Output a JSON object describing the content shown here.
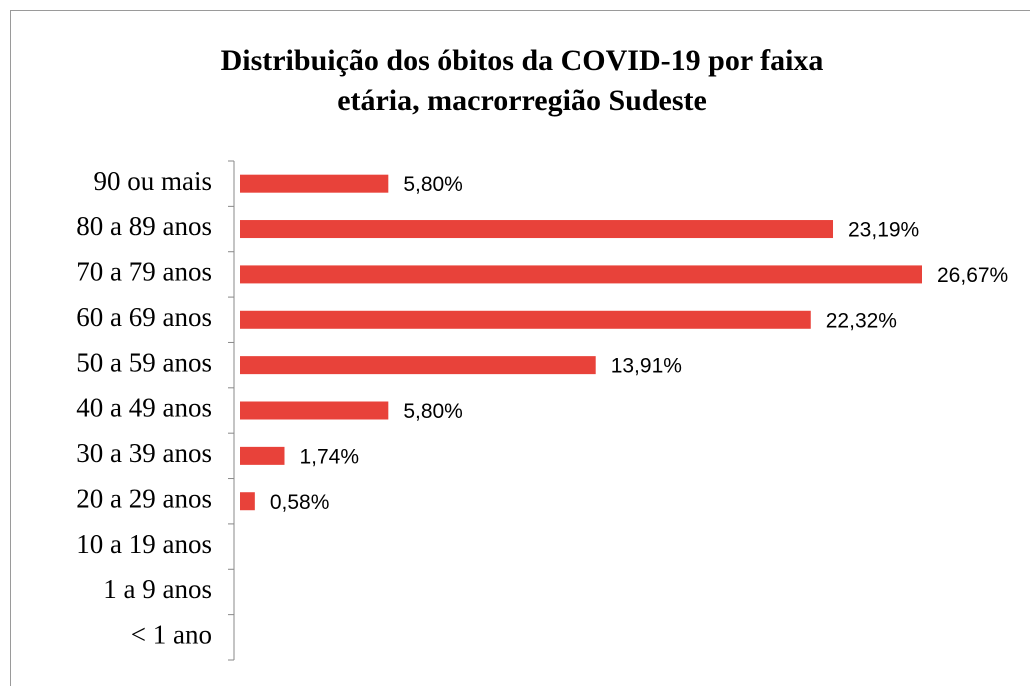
{
  "chart_data": {
    "type": "hbar",
    "title": [
      "Distribuição dos óbitos da COVID-19 por faixa",
      "etária, macrorregião Sudeste"
    ],
    "categories": [
      "90 ou mais",
      "80 a 89 anos",
      "70 a 79 anos",
      "60 a 69 anos",
      "50 a 59 anos",
      "40 a 49 anos",
      "30 a 39 anos",
      "20 a 29 anos",
      "10 a 19 anos",
      "1 a 9 anos",
      "< 1 ano"
    ],
    "values": [
      5.8,
      23.19,
      26.67,
      22.32,
      13.91,
      5.8,
      1.74,
      0.58,
      0,
      0,
      0
    ],
    "value_labels": [
      "5,80%",
      "23,19%",
      "26,67%",
      "22,32%",
      "13,91%",
      "5,80%",
      "1,74%",
      "0,58%",
      null,
      null,
      null
    ],
    "color": "#e8423a"
  }
}
